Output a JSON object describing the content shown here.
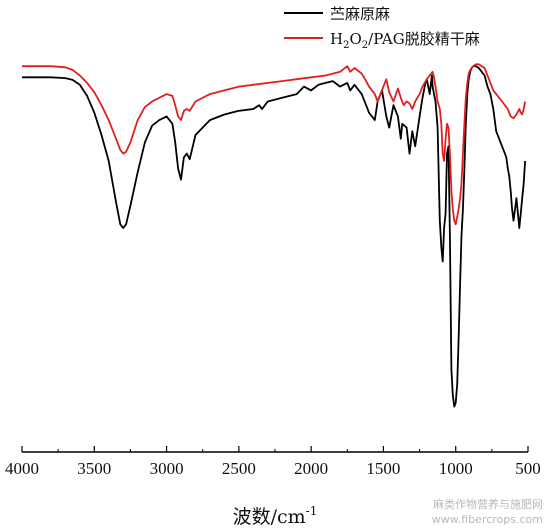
{
  "chart_data": {
    "type": "line",
    "title": "",
    "xlabel": "波数/cm",
    "xlabel_sup": "-1",
    "ylabel": "",
    "xlim": [
      4000,
      500
    ],
    "x_reversed": true,
    "ylim": [
      0,
      100
    ],
    "x_ticks": [
      4000,
      3500,
      3000,
      2500,
      2000,
      1500,
      1000,
      500
    ],
    "y_ticks_shown": false,
    "grid": false,
    "legend_position": "top-right",
    "series": [
      {
        "name": "苎麻原麻",
        "color": "#000000",
        "x": [
          4000,
          3900,
          3800,
          3700,
          3650,
          3600,
          3550,
          3500,
          3450,
          3400,
          3350,
          3320,
          3300,
          3280,
          3250,
          3200,
          3150,
          3100,
          3050,
          3000,
          2960,
          2940,
          2920,
          2900,
          2880,
          2860,
          2840,
          2800,
          2700,
          2600,
          2500,
          2400,
          2360,
          2340,
          2300,
          2200,
          2100,
          2050,
          2000,
          1950,
          1900,
          1850,
          1800,
          1750,
          1730,
          1700,
          1650,
          1620,
          1600,
          1560,
          1540,
          1510,
          1480,
          1460,
          1430,
          1400,
          1380,
          1370,
          1340,
          1320,
          1300,
          1280,
          1250,
          1230,
          1210,
          1200,
          1180,
          1165,
          1160,
          1150,
          1140,
          1125,
          1110,
          1100,
          1090,
          1080,
          1070,
          1060,
          1050,
          1040,
          1030,
          1020,
          1010,
          1000,
          990,
          980,
          970,
          960,
          950,
          940,
          930,
          920,
          910,
          900,
          890,
          880,
          860,
          840,
          820,
          800,
          780,
          760,
          740,
          720,
          700,
          680,
          660,
          650,
          640,
          630,
          620,
          610,
          600,
          590,
          580,
          570,
          560,
          550,
          540,
          530,
          520
        ],
        "y": [
          90.5,
          90.5,
          90.5,
          90.3,
          89.8,
          88.5,
          85.5,
          81,
          75,
          68,
          57,
          51,
          50,
          51,
          56,
          65,
          73,
          77.5,
          79,
          80,
          78,
          73,
          66,
          63,
          69,
          70,
          68.5,
          75,
          79,
          80.5,
          81.5,
          82,
          83,
          82,
          84,
          85,
          86,
          88,
          87,
          88.5,
          89,
          89.5,
          88,
          89,
          87,
          88.5,
          86,
          83,
          81,
          79,
          84,
          87,
          80,
          77,
          83,
          80,
          74,
          78,
          77,
          70,
          76,
          72,
          80,
          85,
          89,
          90,
          86,
          91,
          88,
          86,
          84,
          77,
          52,
          45,
          41,
          50,
          54,
          70,
          72,
          48,
          12,
          5,
          2,
          3,
          8,
          20,
          35,
          48,
          55,
          66,
          78,
          86,
          90,
          92,
          93,
          93.5,
          93.5,
          93,
          92,
          91,
          88,
          86,
          82,
          76,
          74,
          72,
          70,
          69,
          66,
          64,
          60,
          55,
          52,
          55,
          58,
          54,
          50,
          54,
          58,
          62,
          68
        ]
      },
      {
        "name": "H2O2/PAG脱胶精干麻",
        "color": "#e02020",
        "x": [
          4000,
          3900,
          3800,
          3700,
          3650,
          3600,
          3550,
          3500,
          3450,
          3400,
          3350,
          3320,
          3300,
          3280,
          3250,
          3200,
          3150,
          3100,
          3050,
          3000,
          2960,
          2940,
          2920,
          2900,
          2880,
          2860,
          2840,
          2800,
          2700,
          2600,
          2500,
          2400,
          2300,
          2200,
          2100,
          2000,
          1900,
          1800,
          1750,
          1730,
          1700,
          1650,
          1620,
          1600,
          1560,
          1540,
          1500,
          1480,
          1460,
          1430,
          1400,
          1380,
          1360,
          1340,
          1320,
          1300,
          1280,
          1250,
          1230,
          1200,
          1180,
          1160,
          1150,
          1140,
          1125,
          1110,
          1100,
          1090,
          1080,
          1070,
          1060,
          1050,
          1040,
          1030,
          1020,
          1010,
          1000,
          990,
          980,
          970,
          960,
          950,
          940,
          930,
          920,
          910,
          900,
          880,
          860,
          840,
          820,
          800,
          780,
          760,
          740,
          720,
          700,
          680,
          660,
          640,
          630,
          620,
          600,
          580,
          560,
          550,
          540,
          530,
          520
        ],
        "y": [
          93.5,
          93.5,
          93.5,
          93.2,
          92.5,
          91,
          89,
          86.5,
          83,
          79,
          74,
          71,
          70,
          70.5,
          73,
          79,
          82.5,
          84,
          85,
          86,
          85.5,
          83,
          80,
          79,
          81.5,
          82,
          81.5,
          84,
          86,
          87,
          88,
          88.5,
          89,
          89.5,
          90,
          90.5,
          91,
          92,
          93.5,
          92,
          93,
          91.5,
          89.5,
          88,
          86,
          84,
          88,
          90,
          86.5,
          84,
          87.5,
          85,
          83,
          84,
          83.5,
          82,
          84,
          86,
          88,
          90,
          91,
          92,
          90.5,
          88,
          84,
          82,
          78,
          70,
          68,
          74,
          78,
          77,
          70,
          60,
          55,
          52,
          51,
          53,
          55,
          58,
          62,
          70,
          78,
          85,
          89,
          91.5,
          92.5,
          93.5,
          94,
          94,
          93.5,
          93,
          91,
          89,
          87,
          86,
          85,
          84,
          83,
          82,
          81,
          80,
          79.5,
          80.5,
          82,
          81,
          80.5,
          82,
          84
        ]
      }
    ]
  },
  "legend_texts": {
    "black": "苎麻原麻",
    "red_pre": "H",
    "red_sub1": "2",
    "red_mid": "O",
    "red_sub2": "2",
    "red_post": "/PAG脱胶精干麻"
  },
  "watermark": {
    "line1": "麻类作物营养与施肥网",
    "line2": "www.fibercrops.com"
  }
}
